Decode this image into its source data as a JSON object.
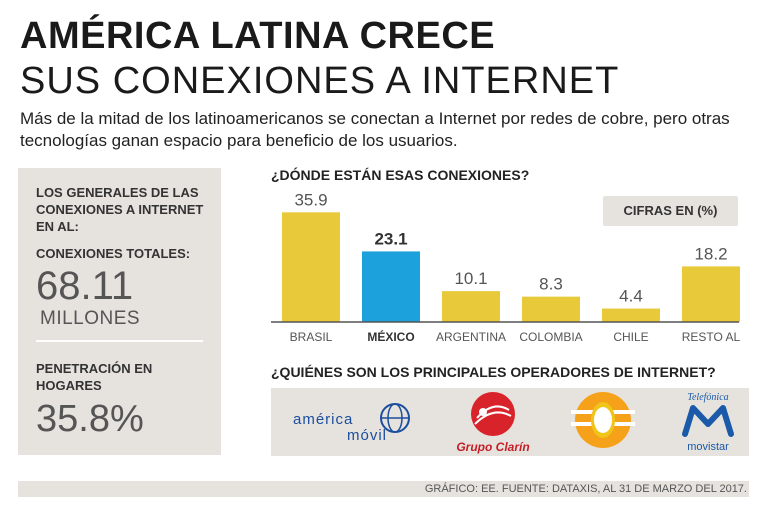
{
  "header": {
    "title_line1": "AMÉRICA LATINA CRECE",
    "title_line2": "SUS CONEXIONES A INTERNET",
    "subtitle": "Más de la mitad de los latinoamericanos se conectan a Internet por redes de cobre, pero otras tecnologías ganan espacio para beneficio de los usuarios."
  },
  "sidebar": {
    "heading": "LOS GENERALES DE LAS CONEXIONES A INTERNET EN AL:",
    "total_label": "CONEXIONES TOTALES:",
    "total_value": "68.11",
    "total_unit": "MILLONES",
    "penetration_label": "PENETRACIÓN EN HOGARES",
    "penetration_value": "35.8%"
  },
  "chart_data": {
    "type": "bar",
    "title": "¿DÓNDE ESTÁN ESAS CONEXIONES?",
    "units_badge": "CIFRAS EN (%)",
    "categories": [
      "BRASIL",
      "MÉXICO",
      "ARGENTINA",
      "COLOMBIA",
      "CHILE",
      "RESTO AL"
    ],
    "values": [
      35.9,
      23.1,
      10.1,
      8.3,
      4.4,
      18.2
    ],
    "value_labels": [
      "35.9",
      "23.1",
      "10.1",
      "8.3",
      "4.4",
      "18.2"
    ],
    "highlight": "MÉXICO",
    "ylim": [
      0,
      36
    ],
    "xlabel": "",
    "ylabel": "",
    "colors": {
      "default": "#e8c93a",
      "highlight": "#1da1dc",
      "baseline": "#555555"
    }
  },
  "operators": {
    "title": "¿QUIÉNES SON LOS PRINCIPALES OPERADORES DE INTERNET?",
    "logos": [
      {
        "name": "america-movil",
        "line1": "américa",
        "line2": "móvil",
        "color": "#1c4e9e"
      },
      {
        "name": "grupo-clarin",
        "text": "Grupo Clarín",
        "color": "#d8232a"
      },
      {
        "name": "televisa",
        "color": "#f6a11a"
      },
      {
        "name": "movistar",
        "brand": "Telefónica",
        "text": "movistar",
        "color": "#1a5aa8"
      }
    ]
  },
  "footer": "GRÁFICO: EE. FUENTE: DATAXIS, AL 31 DE MARZO DEL 2017."
}
